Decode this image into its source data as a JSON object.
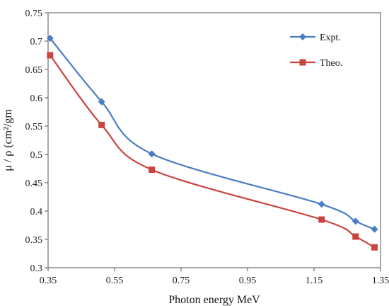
{
  "chart_data": {
    "type": "line",
    "xlabel": "Photon energy MeV",
    "ylabel": "μ / ρ (cm²/gm",
    "xlim": [
      0.35,
      1.35
    ],
    "ylim": [
      0.3,
      0.75
    ],
    "xticks": [
      "0.35",
      "0.55",
      "0.75",
      "0.95",
      "1.15",
      "1.35"
    ],
    "yticks": [
      "0.3",
      "0.35",
      "0.4",
      "0.45",
      "0.5",
      "0.55",
      "0.6",
      "0.65",
      "0.7",
      "0.75"
    ],
    "grid": false,
    "legend_position": "top-right",
    "series": [
      {
        "name": "Expt.",
        "color": "#4a7ec2",
        "marker": "diamond",
        "x": [
          0.356,
          0.511,
          0.662,
          1.173,
          1.275,
          1.332
        ],
        "y": [
          0.705,
          0.593,
          0.501,
          0.412,
          0.382,
          0.368
        ]
      },
      {
        "name": "Theo.",
        "color": "#c9443f",
        "marker": "square",
        "x": [
          0.356,
          0.511,
          0.662,
          1.173,
          1.275,
          1.332
        ],
        "y": [
          0.675,
          0.552,
          0.473,
          0.385,
          0.355,
          0.336
        ]
      }
    ]
  }
}
